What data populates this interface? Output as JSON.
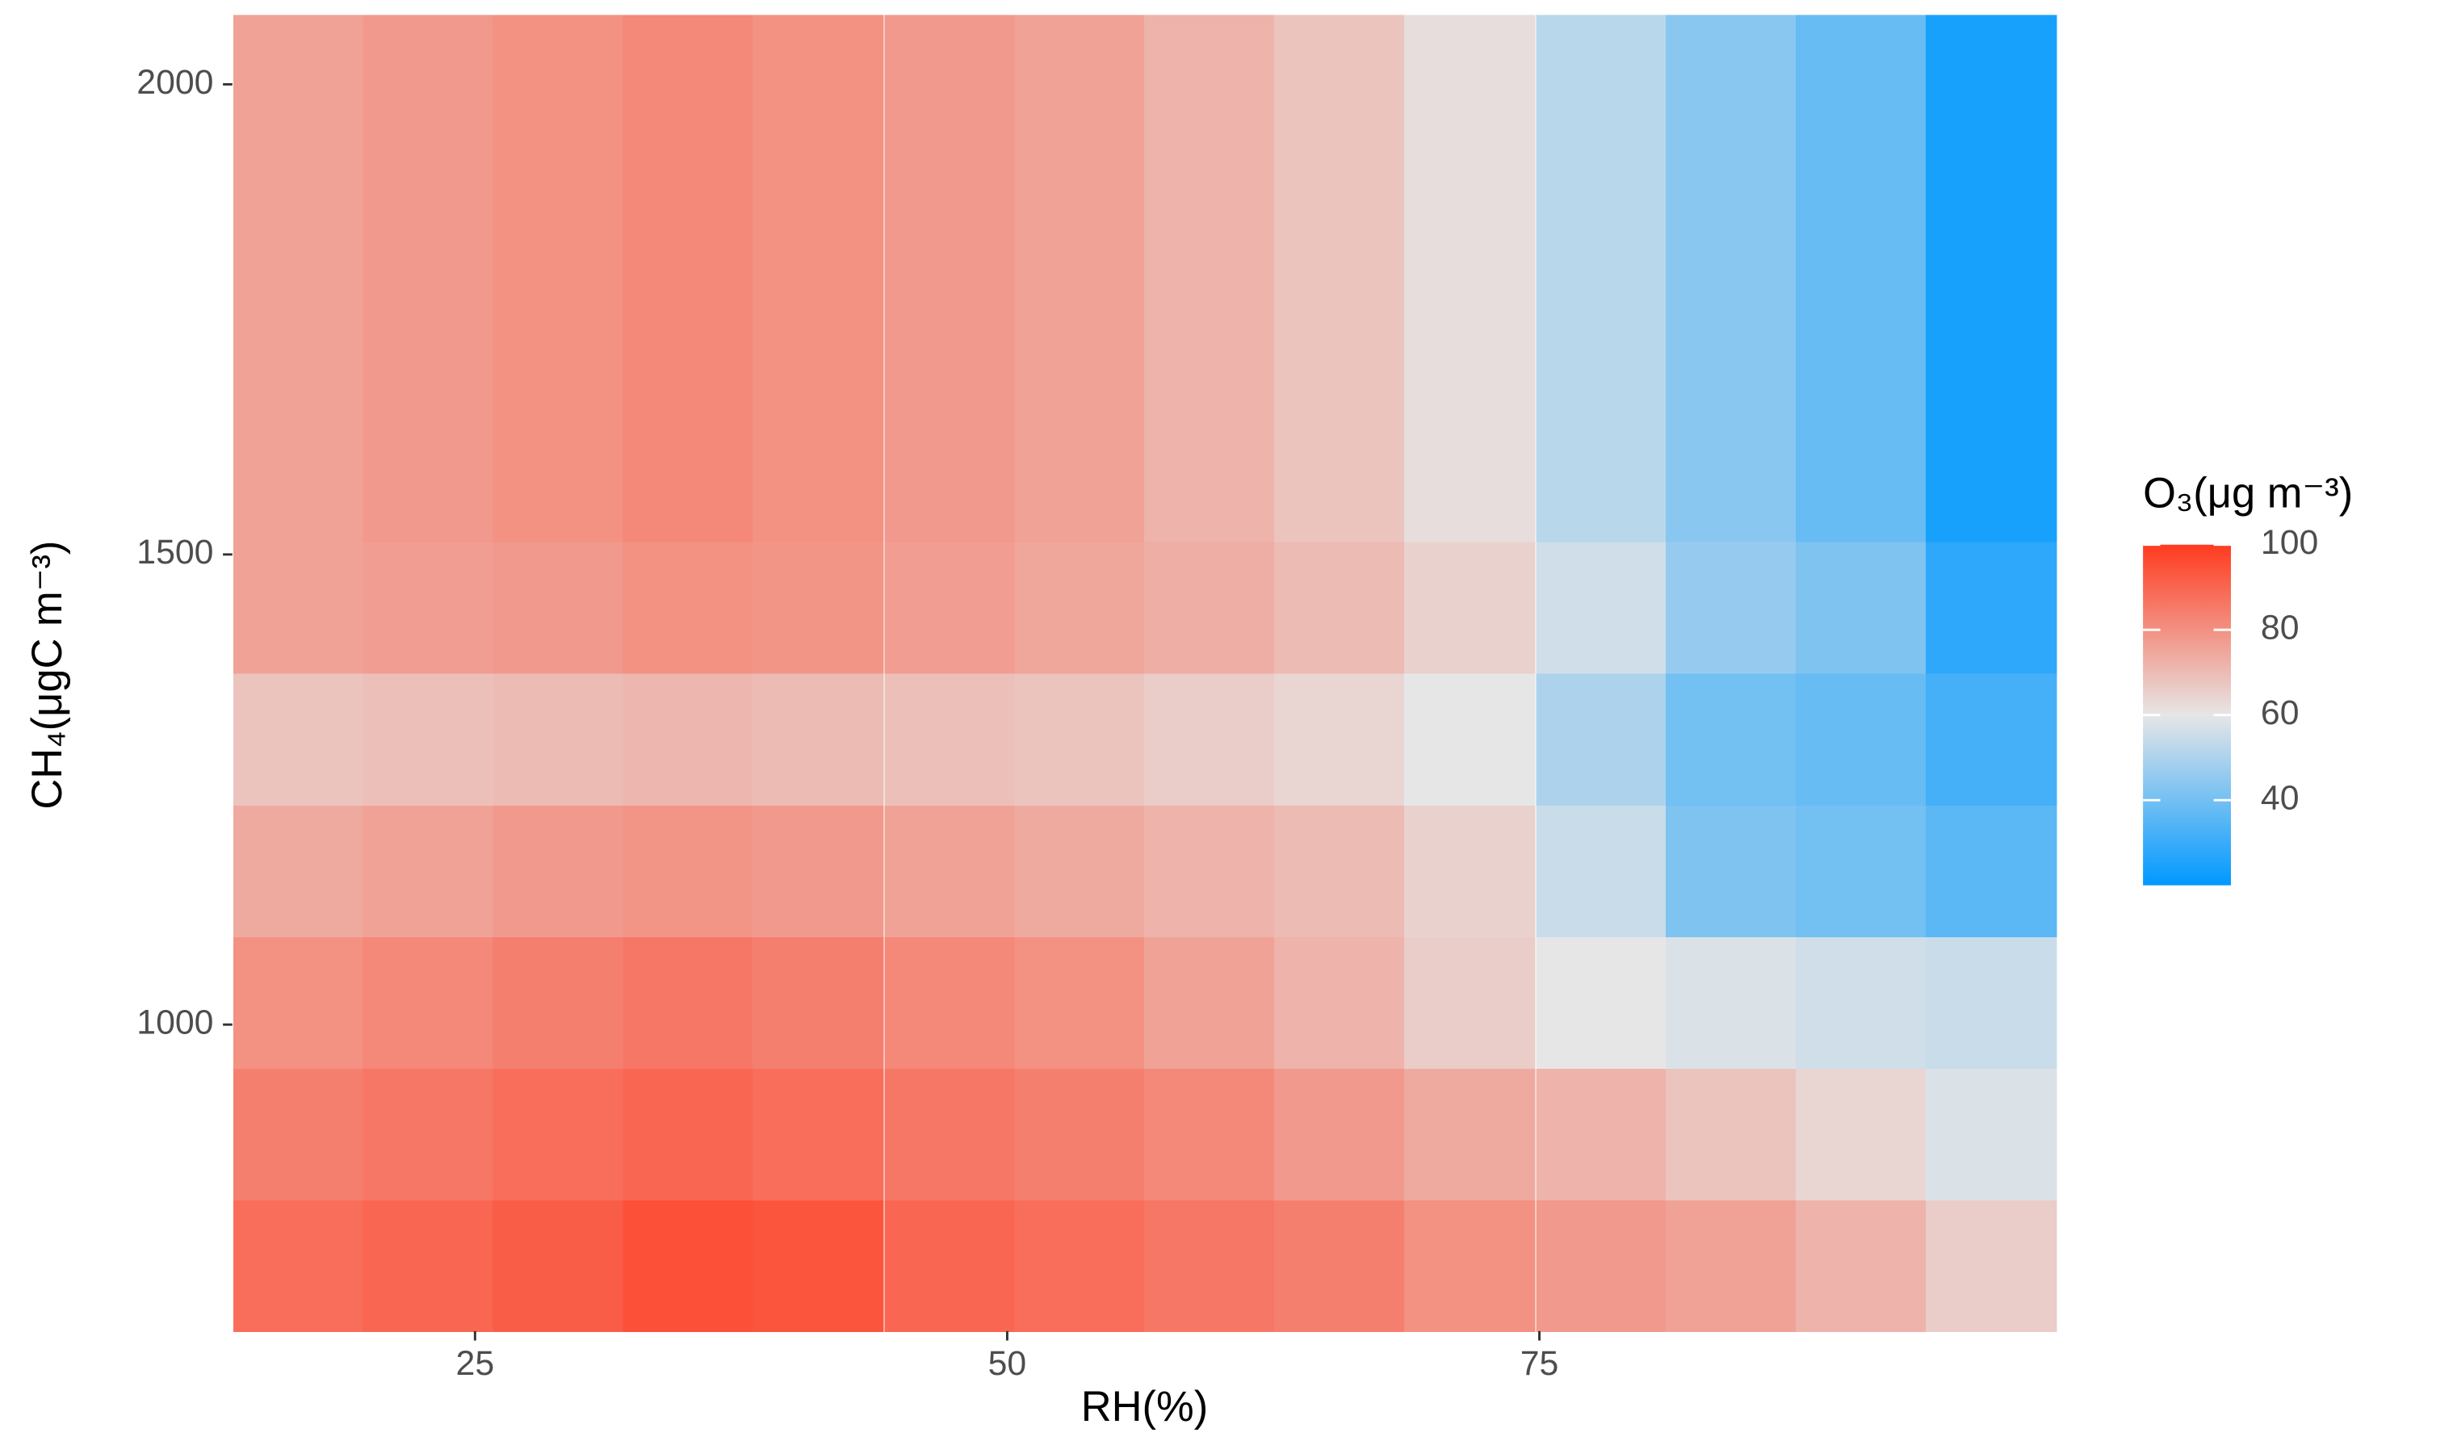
{
  "chart_data": {
    "type": "heatmap",
    "x_label": "RH(%)",
    "y_label": "CH₄(μgC m⁻³)",
    "legend_title": "O₃(μg m⁻³)",
    "x": [
      16.7,
      22.8,
      28.9,
      35,
      41.1,
      47.3,
      53.4,
      59.5,
      65.6,
      71.7,
      77.9,
      84,
      90.1,
      96.2
    ],
    "y": [
      744,
      884,
      1024,
      1164,
      1304,
      1444,
      1584,
      1724,
      1864,
      2004
    ],
    "z": [
      [
        88,
        90,
        92,
        95,
        94,
        90,
        88,
        86,
        84,
        80,
        78,
        76,
        72,
        66
      ],
      [
        84,
        86,
        88,
        90,
        88,
        86,
        84,
        82,
        78,
        74,
        72,
        68,
        64,
        58
      ],
      [
        80,
        82,
        84,
        86,
        84,
        82,
        80,
        76,
        72,
        66,
        60,
        58,
        56,
        55
      ],
      [
        74,
        76,
        78,
        79,
        78,
        76,
        74,
        72,
        70,
        65,
        55,
        42,
        40,
        36
      ],
      [
        68,
        69,
        70,
        71,
        70,
        69,
        68,
        66,
        64,
        60,
        50,
        40,
        38,
        32
      ],
      [
        76,
        77,
        78,
        80,
        79,
        77,
        75,
        73,
        70,
        65,
        56,
        46,
        42,
        28
      ],
      [
        76,
        78,
        80,
        82,
        80,
        78,
        76,
        72,
        68,
        62,
        52,
        44,
        38,
        24
      ],
      [
        76,
        78,
        80,
        82,
        80,
        78,
        76,
        72,
        68,
        62,
        52,
        44,
        38,
        24
      ],
      [
        76,
        78,
        80,
        82,
        80,
        78,
        76,
        72,
        68,
        62,
        52,
        44,
        38,
        24
      ],
      [
        76,
        78,
        80,
        82,
        80,
        78,
        76,
        72,
        68,
        62,
        52,
        44,
        38,
        24
      ]
    ],
    "xlim": [
      13.6,
      99.3
    ],
    "ylim": [
      674,
      2073
    ],
    "xticks": [
      25,
      50,
      75
    ],
    "yticks": [
      1000,
      1500,
      2000
    ],
    "zlim": [
      20,
      100
    ],
    "zticks": [
      100,
      80,
      60,
      40
    ],
    "colors": {
      "low": "#0099ff",
      "mid": "#e6e6e6",
      "high": "#ff3b1f"
    },
    "midpoint": 60
  }
}
